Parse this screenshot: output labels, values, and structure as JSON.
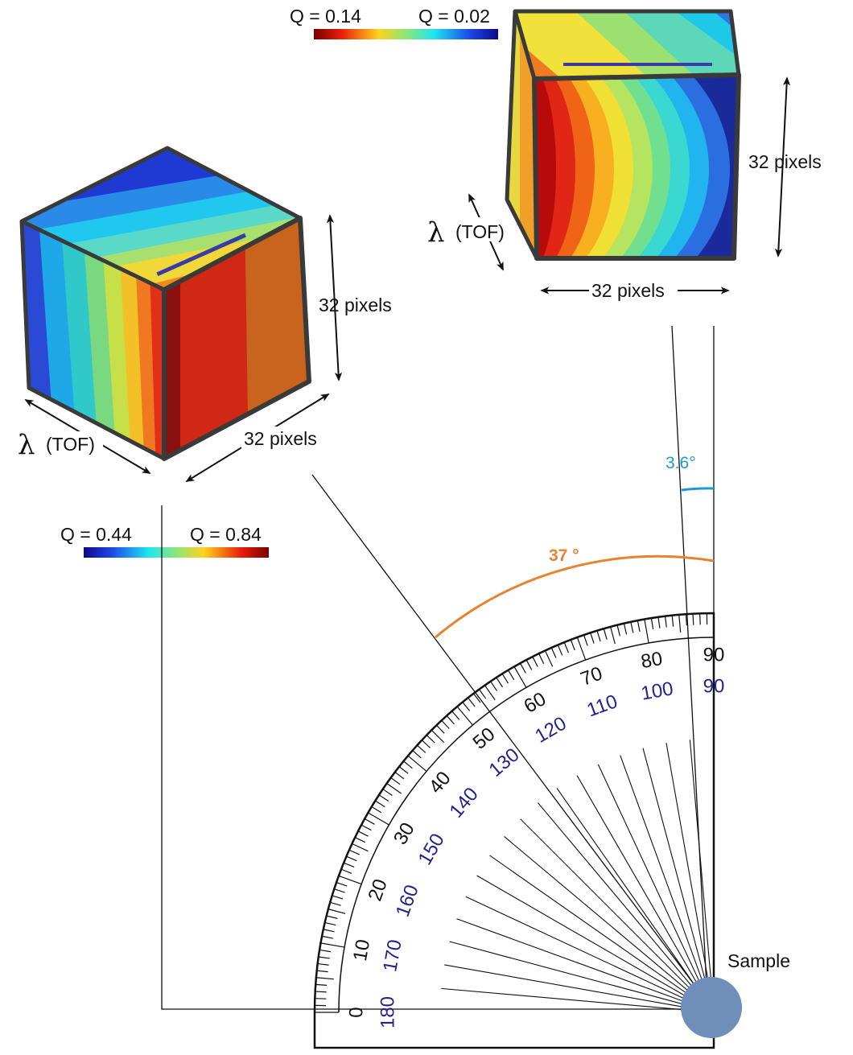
{
  "colors": {
    "orange_angle": "#e8822e",
    "cyan_angle": "#1b9bd6",
    "outer_scale": "#111111",
    "inner_scale": "#23238f",
    "sample": "#6f8fba"
  },
  "colorbar_top": {
    "left_label": "Q = 0.14",
    "right_label": "Q = 0.02",
    "direction": "red-to-blue"
  },
  "colorbar_bottom": {
    "left_label": "Q = 0.44",
    "right_label": "Q = 0.84",
    "direction": "blue-to-red"
  },
  "cube_left": {
    "height_label": "32 pixels",
    "width_label": "32 pixels",
    "lambda_symbol": "λ",
    "lambda_label": "(TOF)"
  },
  "cube_right": {
    "height_label": "32 pixels",
    "width_label": "32 pixels",
    "lambda_symbol": "λ",
    "lambda_label": "(TOF)"
  },
  "angles": {
    "small_label": "3.6°",
    "large_label": "37 °"
  },
  "sample_label": "Sample",
  "protractor": {
    "outer_labels": [
      "0",
      "10",
      "20",
      "30",
      "40",
      "50",
      "60",
      "70",
      "80",
      "90"
    ],
    "inner_labels": [
      "180",
      "170",
      "160",
      "150",
      "140",
      "130",
      "120",
      "110",
      "100",
      "90"
    ]
  }
}
